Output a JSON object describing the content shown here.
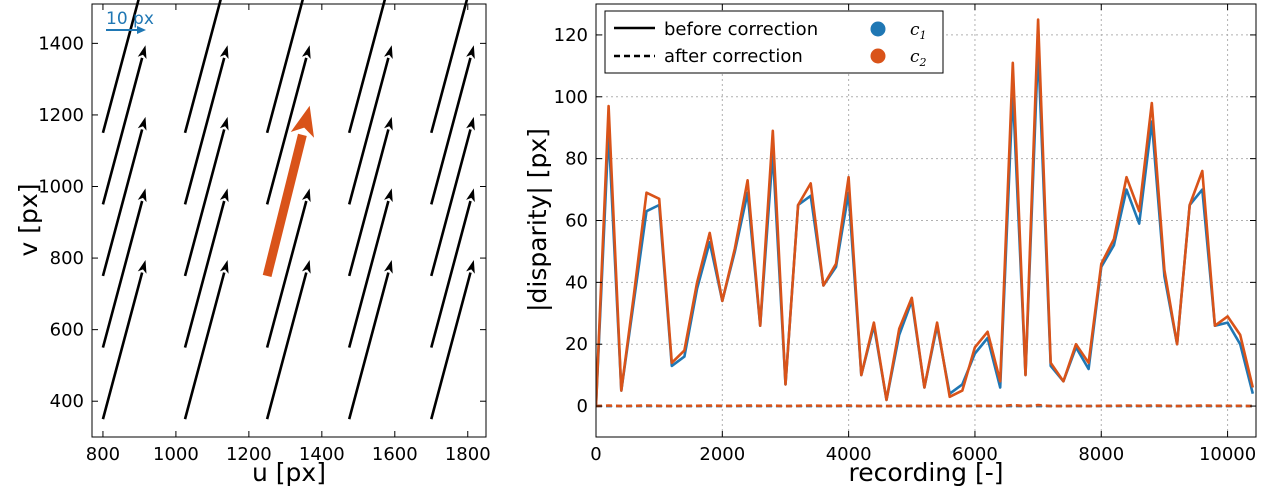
{
  "colors": {
    "blue": "#1f77b4",
    "orange": "#d95319",
    "black": "#000000",
    "grid": "#b0b0b0"
  },
  "chart_data": [
    {
      "type": "quiver",
      "title": "",
      "xlabel": "u [px]",
      "ylabel": "v [px]",
      "xlim": [
        770,
        1850
      ],
      "ylim": [
        300,
        1510
      ],
      "xticks": [
        800,
        1000,
        1200,
        1400,
        1600,
        1800
      ],
      "yticks": [
        400,
        600,
        800,
        1000,
        1200,
        1400
      ],
      "grid": false,
      "scale_label": "10 px",
      "scale_vector_length_px": 10,
      "arrows": [
        {
          "u": 800,
          "v": 350,
          "du": 2.3,
          "dv": 8.6
        },
        {
          "u": 800,
          "v": 550,
          "du": 2.3,
          "dv": 8.6
        },
        {
          "u": 800,
          "v": 750,
          "du": 2.3,
          "dv": 8.6
        },
        {
          "u": 800,
          "v": 950,
          "du": 2.3,
          "dv": 8.6
        },
        {
          "u": 800,
          "v": 1150,
          "du": 2.3,
          "dv": 8.6
        },
        {
          "u": 1025,
          "v": 350,
          "du": 2.3,
          "dv": 8.6
        },
        {
          "u": 1025,
          "v": 550,
          "du": 2.3,
          "dv": 8.6
        },
        {
          "u": 1025,
          "v": 750,
          "du": 2.3,
          "dv": 8.6
        },
        {
          "u": 1025,
          "v": 950,
          "du": 2.3,
          "dv": 8.6
        },
        {
          "u": 1025,
          "v": 1150,
          "du": 2.3,
          "dv": 8.6
        },
        {
          "u": 1250,
          "v": 350,
          "du": 2.3,
          "dv": 8.6
        },
        {
          "u": 1250,
          "v": 550,
          "du": 2.3,
          "dv": 8.6
        },
        {
          "u": 1250,
          "v": 950,
          "du": 2.3,
          "dv": 8.6
        },
        {
          "u": 1250,
          "v": 1150,
          "du": 2.3,
          "dv": 8.6
        },
        {
          "u": 1475,
          "v": 350,
          "du": 2.3,
          "dv": 8.6
        },
        {
          "u": 1475,
          "v": 550,
          "du": 2.3,
          "dv": 8.6
        },
        {
          "u": 1475,
          "v": 750,
          "du": 2.3,
          "dv": 8.6
        },
        {
          "u": 1475,
          "v": 950,
          "du": 2.3,
          "dv": 8.6
        },
        {
          "u": 1475,
          "v": 1150,
          "du": 2.3,
          "dv": 8.6
        },
        {
          "u": 1700,
          "v": 350,
          "du": 2.3,
          "dv": 8.6
        },
        {
          "u": 1700,
          "v": 550,
          "du": 2.3,
          "dv": 8.6
        },
        {
          "u": 1700,
          "v": 750,
          "du": 2.3,
          "dv": 8.6
        },
        {
          "u": 1700,
          "v": 950,
          "du": 2.3,
          "dv": 8.6
        },
        {
          "u": 1700,
          "v": 1150,
          "du": 2.3,
          "dv": 8.6
        }
      ],
      "highlight_arrow": {
        "u": 1250,
        "v": 750,
        "du": 2.3,
        "dv": 9.2,
        "color": "#d95319"
      }
    },
    {
      "type": "line",
      "title": "",
      "xlabel": "recording [-]",
      "ylabel": "|disparity| [px]",
      "xlim": [
        0,
        10450
      ],
      "ylim": [
        -10,
        130
      ],
      "xticks": [
        0,
        2000,
        4000,
        6000,
        8000,
        10000
      ],
      "yticks": [
        0,
        20,
        40,
        60,
        80,
        100,
        120
      ],
      "grid": true,
      "legend_position": "top-left",
      "legend": [
        {
          "label": "before correction",
          "style": "solid"
        },
        {
          "label": "after correction",
          "style": "dashed"
        },
        {
          "label": "c1",
          "marker": "circle",
          "color": "#1f77b4"
        },
        {
          "label": "c2",
          "marker": "circle",
          "color": "#d95319"
        }
      ],
      "x": [
        0,
        200,
        400,
        600,
        800,
        1000,
        1200,
        1400,
        1600,
        1800,
        2000,
        2200,
        2400,
        2600,
        2800,
        3000,
        3200,
        3400,
        3600,
        3800,
        4000,
        4200,
        4400,
        4600,
        4800,
        5000,
        5200,
        5400,
        5600,
        5800,
        6000,
        6200,
        6400,
        6600,
        6800,
        7000,
        7200,
        7400,
        7600,
        7800,
        8000,
        8200,
        8400,
        8600,
        8800,
        9000,
        9200,
        9400,
        9600,
        9800,
        10000,
        10200,
        10400
      ],
      "series": [
        {
          "name": "c1",
          "style": "solid",
          "color": "#1f77b4",
          "values": [
            0,
            89,
            5,
            34,
            63,
            65,
            13,
            16,
            38,
            53,
            34,
            50,
            69,
            26,
            82,
            7,
            65,
            68,
            39,
            45,
            69,
            10,
            26,
            2,
            23,
            34,
            6,
            26,
            4,
            7,
            17,
            22,
            6,
            102,
            10,
            116,
            13,
            8,
            19,
            12,
            45,
            52,
            70,
            59,
            92,
            42,
            20,
            65,
            70,
            26,
            27,
            20,
            4
          ]
        },
        {
          "name": "c2",
          "style": "solid",
          "color": "#d95319",
          "values": [
            0,
            97,
            5,
            36,
            69,
            67,
            14,
            18,
            40,
            56,
            34,
            51,
            73,
            26,
            89,
            7,
            65,
            72,
            39,
            46,
            74,
            10,
            27,
            2,
            25,
            35,
            6,
            27,
            3,
            5,
            19,
            24,
            8,
            111,
            10,
            125,
            14,
            8,
            20,
            14,
            46,
            54,
            74,
            63,
            98,
            44,
            20,
            65,
            76,
            26,
            29,
            23,
            6
          ]
        },
        {
          "name": "c1",
          "style": "dashed",
          "color": "#1f77b4",
          "values": [
            0,
            0,
            0,
            0,
            0,
            0,
            0,
            0,
            0,
            0,
            0,
            0,
            0,
            0,
            0,
            0,
            0,
            0,
            0,
            0,
            0,
            0,
            0,
            0,
            0,
            0,
            0,
            0,
            0,
            0,
            0,
            0,
            0,
            0,
            0,
            0,
            0,
            0,
            0,
            0,
            0,
            0,
            0,
            0,
            0,
            0,
            0,
            0,
            0,
            0,
            0,
            0,
            0
          ]
        },
        {
          "name": "c2",
          "style": "dashed",
          "color": "#d95319",
          "values": [
            0,
            0.2,
            0,
            0.1,
            0.2,
            0.1,
            0,
            0.1,
            0.1,
            0.2,
            0.1,
            0.1,
            0.2,
            0.1,
            0.2,
            0,
            0.1,
            0.2,
            0.1,
            0.1,
            0.2,
            0,
            0.1,
            0,
            0.1,
            0.1,
            0,
            0.1,
            0,
            0,
            0.1,
            0.1,
            0,
            0.3,
            0,
            0.3,
            0,
            0,
            0.1,
            0,
            0.1,
            0.1,
            0.2,
            0.1,
            0.2,
            0.1,
            0,
            0.1,
            0.2,
            0.1,
            0.1,
            0.1,
            0
          ]
        }
      ]
    }
  ]
}
